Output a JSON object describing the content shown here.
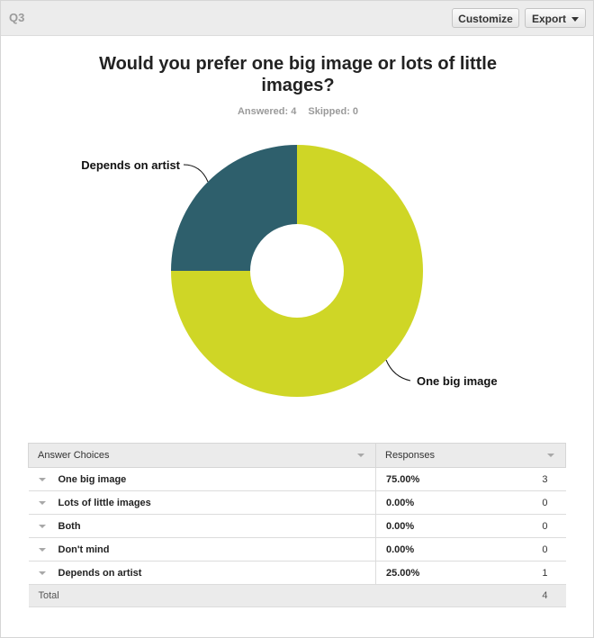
{
  "header": {
    "question_number": "Q3",
    "customize_label": "Customize",
    "export_label": "Export"
  },
  "question": {
    "title": "Would you prefer one big image or lots of little images?",
    "answered_label": "Answered: 4",
    "skipped_label": "Skipped: 0"
  },
  "colors": {
    "one_big_image": "#cfd626",
    "depends_on_artist": "#2e5f6c"
  },
  "chart_data": {
    "type": "pie",
    "donut": true,
    "categories": [
      "One big image",
      "Lots of little images",
      "Both",
      "Don't mind",
      "Depends on artist"
    ],
    "values": [
      75,
      0,
      0,
      0,
      25
    ],
    "counts": [
      3,
      0,
      0,
      0,
      1
    ],
    "unit": "%",
    "labeled_slices": [
      "One big image",
      "Depends on artist"
    ]
  },
  "table": {
    "headers": [
      "Answer Choices",
      "Responses"
    ],
    "rows": [
      {
        "choice": "One big image",
        "percent": "75.00%",
        "count": "3"
      },
      {
        "choice": "Lots of little images",
        "percent": "0.00%",
        "count": "0"
      },
      {
        "choice": "Both",
        "percent": "0.00%",
        "count": "0"
      },
      {
        "choice": "Don't mind",
        "percent": "0.00%",
        "count": "0"
      },
      {
        "choice": "Depends on artist",
        "percent": "25.00%",
        "count": "1"
      }
    ],
    "total_label": "Total",
    "total_count": "4"
  }
}
